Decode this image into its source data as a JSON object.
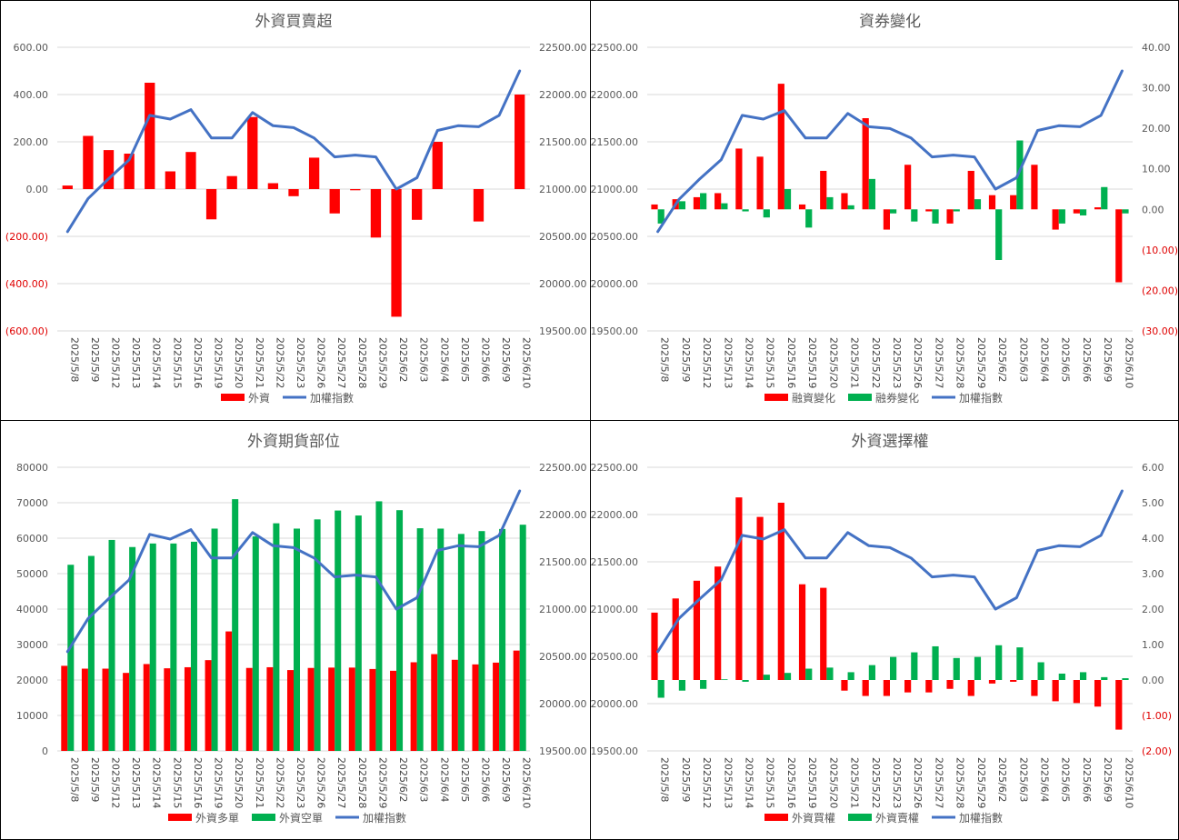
{
  "colors": {
    "red": "#ff0000",
    "green": "#00b050",
    "blue": "#4472c4",
    "grid": "#d9d9d9",
    "neg_label": "#e00000"
  },
  "chart_data": [
    {
      "type": "bar",
      "title": "外資買賣超",
      "categories": [
        "2025/5/8",
        "2025/5/9",
        "2025/5/12",
        "2025/5/13",
        "2025/5/14",
        "2025/5/15",
        "2025/5/16",
        "2025/5/19",
        "2025/5/20",
        "2025/5/21",
        "2025/5/22",
        "2025/5/23",
        "2025/5/26",
        "2025/5/27",
        "2025/5/28",
        "2025/5/29",
        "2025/6/2",
        "2025/6/3",
        "2025/6/4",
        "2025/6/5",
        "2025/6/6",
        "2025/6/9",
        "2025/6/10"
      ],
      "ylim_left": [
        -600,
        600
      ],
      "ytick_step_left": 200,
      "left_tick_labels": [
        "(600.00)",
        "(400.00)",
        "(200.00)",
        "0.00",
        "200.00",
        "400.00",
        "600.00"
      ],
      "ylim_right": [
        19500,
        22500
      ],
      "ytick_step_right": 500,
      "right_tick_labels": [
        "19500.00",
        "20000.00",
        "20500.00",
        "21000.00",
        "21500.00",
        "22000.00",
        "22500.00"
      ],
      "series": [
        {
          "name": "外資",
          "kind": "bar",
          "axis": "left",
          "values": [
            15,
            225,
            165,
            150,
            450,
            75,
            157,
            -128,
            55,
            305,
            25,
            -30,
            133,
            -103,
            -5,
            -205,
            -540,
            -130,
            200,
            0,
            -137,
            0,
            400
          ]
        },
        {
          "name": "加權指數",
          "kind": "line",
          "axis": "right",
          "values": [
            20550,
            20900,
            21110,
            21310,
            21780,
            21740,
            21840,
            21540,
            21540,
            21810,
            21670,
            21650,
            21540,
            21340,
            21360,
            21340,
            21000,
            21120,
            21620,
            21670,
            21660,
            21780,
            22250
          ]
        }
      ]
    },
    {
      "type": "bar",
      "title": "資券變化",
      "categories": [
        "2025/5/8",
        "2025/5/9",
        "2025/5/12",
        "2025/5/13",
        "2025/5/14",
        "2025/5/15",
        "2025/5/16",
        "2025/5/19",
        "2025/5/20",
        "2025/5/21",
        "2025/5/22",
        "2025/5/23",
        "2025/5/26",
        "2025/5/27",
        "2025/5/28",
        "2025/5/29",
        "2025/6/2",
        "2025/6/3",
        "2025/6/4",
        "2025/6/5",
        "2025/6/6",
        "2025/6/9",
        "2025/6/10"
      ],
      "ylim_left": [
        19500,
        22500
      ],
      "ytick_step_left": 500,
      "left_tick_labels": [
        "19500.00",
        "20000.00",
        "20500.00",
        "21000.00",
        "21500.00",
        "22000.00",
        "22500.00"
      ],
      "ylim_right": [
        -30,
        40
      ],
      "ytick_step_right": 10,
      "right_tick_labels": [
        "(30.00)",
        "(20.00)",
        "(10.00)",
        "0.00",
        "10.00",
        "20.00",
        "30.00",
        "40.00"
      ],
      "series": [
        {
          "name": "融資變化",
          "kind": "bar",
          "axis": "right",
          "values": [
            1.2,
            2.5,
            3,
            4,
            15,
            13,
            31,
            1.2,
            9.5,
            4,
            22.5,
            -5,
            11,
            -0.5,
            -3.5,
            9.5,
            3.5,
            3.5,
            11,
            -5,
            -1,
            0.5,
            -18
          ]
        },
        {
          "name": "融券變化",
          "kind": "bar",
          "axis": "right",
          "values": [
            -3.5,
            2,
            4,
            1.5,
            -0.5,
            -2,
            5,
            -4.5,
            3,
            1,
            7.5,
            -1,
            -3,
            -3.5,
            -0.5,
            2.5,
            -12.5,
            17,
            0,
            -3.5,
            -1.5,
            5.5,
            -1
          ]
        },
        {
          "name": "加權指數",
          "kind": "line",
          "axis": "left",
          "values": [
            20550,
            20890,
            21110,
            21310,
            21780,
            21740,
            21830,
            21540,
            21540,
            21800,
            21660,
            21640,
            21540,
            21340,
            21360,
            21340,
            21000,
            21120,
            21620,
            21670,
            21660,
            21780,
            22250
          ]
        }
      ]
    },
    {
      "type": "bar",
      "title": "外資期貨部位",
      "categories": [
        "2025/5/8",
        "2025/5/9",
        "2025/5/12",
        "2025/5/13",
        "2025/5/14",
        "2025/5/15",
        "2025/5/16",
        "2025/5/19",
        "2025/5/20",
        "2025/5/21",
        "2025/5/22",
        "2025/5/23",
        "2025/5/26",
        "2025/5/27",
        "2025/5/28",
        "2025/5/29",
        "2025/6/2",
        "2025/6/3",
        "2025/6/4",
        "2025/6/5",
        "2025/6/6",
        "2025/6/9",
        "2025/6/10"
      ],
      "ylim_left": [
        0,
        80000
      ],
      "ytick_step_left": 10000,
      "left_tick_labels": [
        "0",
        "10000",
        "20000",
        "30000",
        "40000",
        "50000",
        "60000",
        "70000",
        "80000"
      ],
      "ylim_right": [
        19500,
        22500
      ],
      "ytick_step_right": 500,
      "right_tick_labels": [
        "19500.00",
        "20000.00",
        "20500.00",
        "21000.00",
        "21500.00",
        "22000.00",
        "22500.00"
      ],
      "series": [
        {
          "name": "外資多單",
          "kind": "bar",
          "axis": "left",
          "values": [
            24000,
            23200,
            23200,
            22000,
            24500,
            23300,
            23600,
            25600,
            33700,
            23400,
            23600,
            22800,
            23400,
            23500,
            23500,
            23100,
            22600,
            25000,
            27300,
            25700,
            24400,
            24900,
            28300
          ]
        },
        {
          "name": "外資空單",
          "kind": "bar",
          "axis": "left",
          "values": [
            52500,
            55000,
            59500,
            57500,
            58500,
            58500,
            59000,
            62700,
            71000,
            60500,
            64200,
            62700,
            65300,
            67800,
            66400,
            70400,
            67900,
            62800,
            62700,
            61200,
            62000,
            62600,
            63800
          ]
        },
        {
          "name": "加權指數",
          "kind": "line",
          "axis": "right",
          "values": [
            20550,
            20900,
            21110,
            21310,
            21790,
            21740,
            21840,
            21540,
            21540,
            21810,
            21670,
            21650,
            21540,
            21340,
            21360,
            21340,
            21000,
            21120,
            21620,
            21670,
            21660,
            21780,
            22250
          ]
        }
      ]
    },
    {
      "type": "bar",
      "title": "外資選擇權",
      "categories": [
        "2025/5/8",
        "2025/5/9",
        "2025/5/12",
        "2025/5/13",
        "2025/5/14",
        "2025/5/15",
        "2025/5/16",
        "2025/5/19",
        "2025/5/20",
        "2025/5/21",
        "2025/5/22",
        "2025/5/23",
        "2025/5/26",
        "2025/5/27",
        "2025/5/28",
        "2025/5/29",
        "2025/6/2",
        "2025/6/3",
        "2025/6/4",
        "2025/6/5",
        "2025/6/6",
        "2025/6/9",
        "2025/6/10"
      ],
      "ylim_left": [
        19500,
        22500
      ],
      "ytick_step_left": 500,
      "left_tick_labels": [
        "19500.00",
        "20000.00",
        "20500.00",
        "21000.00",
        "21500.00",
        "22000.00",
        "22500.00"
      ],
      "ylim_right": [
        -2,
        6
      ],
      "ytick_step_right": 1,
      "right_tick_labels": [
        "(2.00)",
        "(1.00)",
        "0.00",
        "1.00",
        "2.00",
        "3.00",
        "4.00",
        "5.00",
        "6.00"
      ],
      "series": [
        {
          "name": "外資買權",
          "kind": "bar",
          "axis": "right",
          "values": [
            1.9,
            2.3,
            2.8,
            3.2,
            5.15,
            4.6,
            5.0,
            2.7,
            2.6,
            -0.3,
            -0.45,
            -0.45,
            -0.35,
            -0.35,
            -0.25,
            -0.45,
            -0.1,
            -0.05,
            -0.45,
            -0.6,
            -0.65,
            -0.75,
            -1.4
          ]
        },
        {
          "name": "外資賣權",
          "kind": "bar",
          "axis": "right",
          "values": [
            -0.5,
            -0.3,
            -0.25,
            0.02,
            -0.05,
            0.15,
            0.2,
            0.32,
            0.35,
            0.22,
            0.42,
            0.65,
            0.78,
            0.95,
            0.62,
            0.65,
            0.98,
            0.92,
            0.5,
            0.18,
            0.22,
            0.08,
            0.05
          ]
        },
        {
          "name": "加權指數",
          "kind": "line",
          "axis": "left",
          "values": [
            20550,
            20900,
            21110,
            21310,
            21780,
            21740,
            21840,
            21540,
            21540,
            21810,
            21670,
            21650,
            21540,
            21340,
            21360,
            21340,
            21000,
            21120,
            21620,
            21670,
            21660,
            21780,
            22250
          ]
        }
      ]
    }
  ]
}
